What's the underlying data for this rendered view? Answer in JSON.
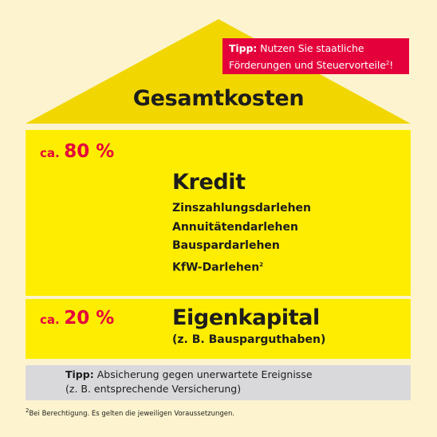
{
  "colors": {
    "background": "#fdf4cf",
    "roof": "#f2d600",
    "block": "#ffed00",
    "accent_red": "#e4003b",
    "tip_bar": "#d9d9dc",
    "text": "#1d1d1b"
  },
  "roof": {
    "title": "Gesamtkosten",
    "tip": {
      "label": "Tipp:",
      "line1": "Nutzen Sie staatliche",
      "line2": "Förderungen und Steuervorteile",
      "superscript": "2",
      "suffix": "!"
    }
  },
  "credit": {
    "pct_prefix": "ca.",
    "pct_value": "80 %",
    "heading": "Kredit",
    "items": [
      {
        "label": "Zinszahlungsdarlehen",
        "sup": ""
      },
      {
        "label": "Annuitätendarlehen",
        "sup": ""
      },
      {
        "label": "Bauspardarlehen",
        "sup": ""
      },
      {
        "label": "KfW-Darlehen",
        "sup": "2"
      }
    ]
  },
  "equity": {
    "pct_prefix": "ca.",
    "pct_value": "20 %",
    "heading": "Eigenkapital",
    "sub": "(z. B. Bausparguthaben)"
  },
  "tip_bar": {
    "label": "Tipp:",
    "line1": "Absicherung gegen unerwartete Ereignisse",
    "line2": "(z. B. entsprechende Versicherung)"
  },
  "footnote": {
    "superscript": "2",
    "text": "Bei Berechtigung. Es gelten die jeweiligen Voraussetzungen."
  }
}
